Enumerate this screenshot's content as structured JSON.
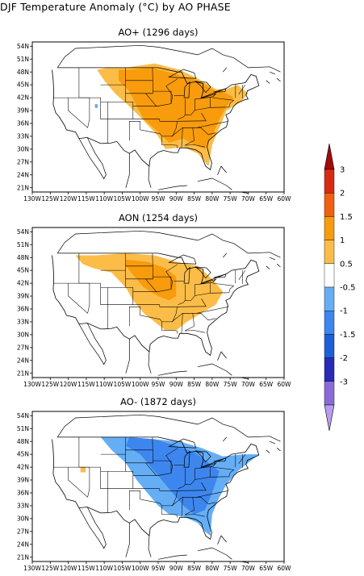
{
  "figure": {
    "title": "DJF Temperature Anomaly (°C) by AO PHASE"
  },
  "panels": [
    {
      "id": "ao-plus",
      "title": "AO+ (1296 days)",
      "phase": "positive"
    },
    {
      "id": "ao-neutral",
      "title": "AON (1254 days)",
      "phase": "neutral"
    },
    {
      "id": "ao-minus",
      "title": "AO- (1872 days)",
      "phase": "negative"
    }
  ],
  "map_axes": {
    "lat_labels": [
      "54N",
      "51N",
      "48N",
      "45N",
      "42N",
      "39N",
      "36N",
      "33N",
      "30N",
      "27N",
      "24N",
      "21N"
    ],
    "lon_labels": [
      "130W",
      "125W",
      "120W",
      "115W",
      "110W",
      "105W",
      "100W",
      "95W",
      "90W",
      "85W",
      "80W",
      "75W",
      "70W",
      "65W",
      "60W"
    ],
    "lat_range": [
      20,
      55
    ],
    "lon_range": [
      -130,
      -60
    ]
  },
  "colorbar": {
    "levels": [
      "3",
      "2",
      "1.5",
      "1",
      "0.5",
      "-0.5",
      "-1",
      "-1.5",
      "-2",
      "-3"
    ],
    "colors": [
      "#a00a0a",
      "#d82a12",
      "#f06010",
      "#f89b0c",
      "#fbbd48",
      "#ffffff",
      "#65aef5",
      "#3d86ee",
      "#1e5fd8",
      "#2a2ab8",
      "#8a6ad8",
      "#b89cf0"
    ]
  }
}
